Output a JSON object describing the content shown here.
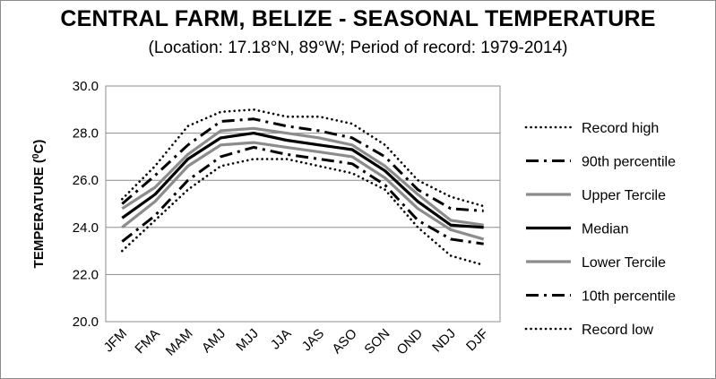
{
  "chart_data": {
    "type": "line",
    "title": "CENTRAL FARM, BELIZE - SEASONAL TEMPERATURE",
    "subtitle": "(Location: 17.18°N, 89°W; Period of record: 1979-2014)",
    "xlabel": "",
    "ylabel": "TEMPERATURE (",
    "ylabel_sup": "0",
    "ylabel_suffix": "C)",
    "ylim": [
      20.0,
      30.0
    ],
    "yticks": [
      "20.0",
      "22.0",
      "24.0",
      "26.0",
      "28.0",
      "30.0"
    ],
    "categories": [
      "JFM",
      "FMA",
      "MAM",
      "AMJ",
      "MJJ",
      "JJA",
      "JAS",
      "ASO",
      "SON",
      "OND",
      "NDJ",
      "DJF"
    ],
    "grid": true,
    "legend_position": "right",
    "series": [
      {
        "name": "Record high",
        "style": "dotted",
        "color": "#000000",
        "values": [
          25.2,
          26.6,
          28.3,
          28.9,
          29.0,
          28.7,
          28.7,
          28.4,
          27.5,
          26.0,
          25.3,
          24.9
        ]
      },
      {
        "name": "90th percentile",
        "style": "dash-dot",
        "color": "#000000",
        "values": [
          25.0,
          26.2,
          27.5,
          28.5,
          28.6,
          28.3,
          28.1,
          27.8,
          27.0,
          25.6,
          24.8,
          24.7
        ]
      },
      {
        "name": "Upper Tercile",
        "style": "solid",
        "color": "#8c8c8c",
        "values": [
          24.8,
          25.7,
          27.1,
          28.1,
          28.2,
          28.0,
          27.8,
          27.5,
          26.6,
          25.4,
          24.3,
          24.1
        ]
      },
      {
        "name": "Median",
        "style": "solid",
        "color": "#000000",
        "values": [
          24.4,
          25.4,
          26.9,
          27.8,
          28.0,
          27.7,
          27.5,
          27.3,
          26.4,
          25.1,
          24.1,
          24.0
        ]
      },
      {
        "name": "Lower Tercile",
        "style": "solid",
        "color": "#8c8c8c",
        "values": [
          24.0,
          25.1,
          26.6,
          27.5,
          27.6,
          27.4,
          27.2,
          27.0,
          26.1,
          24.8,
          23.9,
          23.5
        ]
      },
      {
        "name": "10th percentile",
        "style": "dash-dot",
        "color": "#000000",
        "values": [
          23.4,
          24.5,
          26.0,
          27.0,
          27.4,
          27.1,
          26.9,
          26.7,
          25.8,
          24.3,
          23.5,
          23.3
        ]
      },
      {
        "name": "Record low",
        "style": "dotted",
        "color": "#000000",
        "values": [
          23.0,
          24.3,
          25.6,
          26.6,
          26.9,
          26.9,
          26.6,
          26.3,
          25.6,
          24.0,
          22.8,
          22.4
        ]
      }
    ]
  }
}
